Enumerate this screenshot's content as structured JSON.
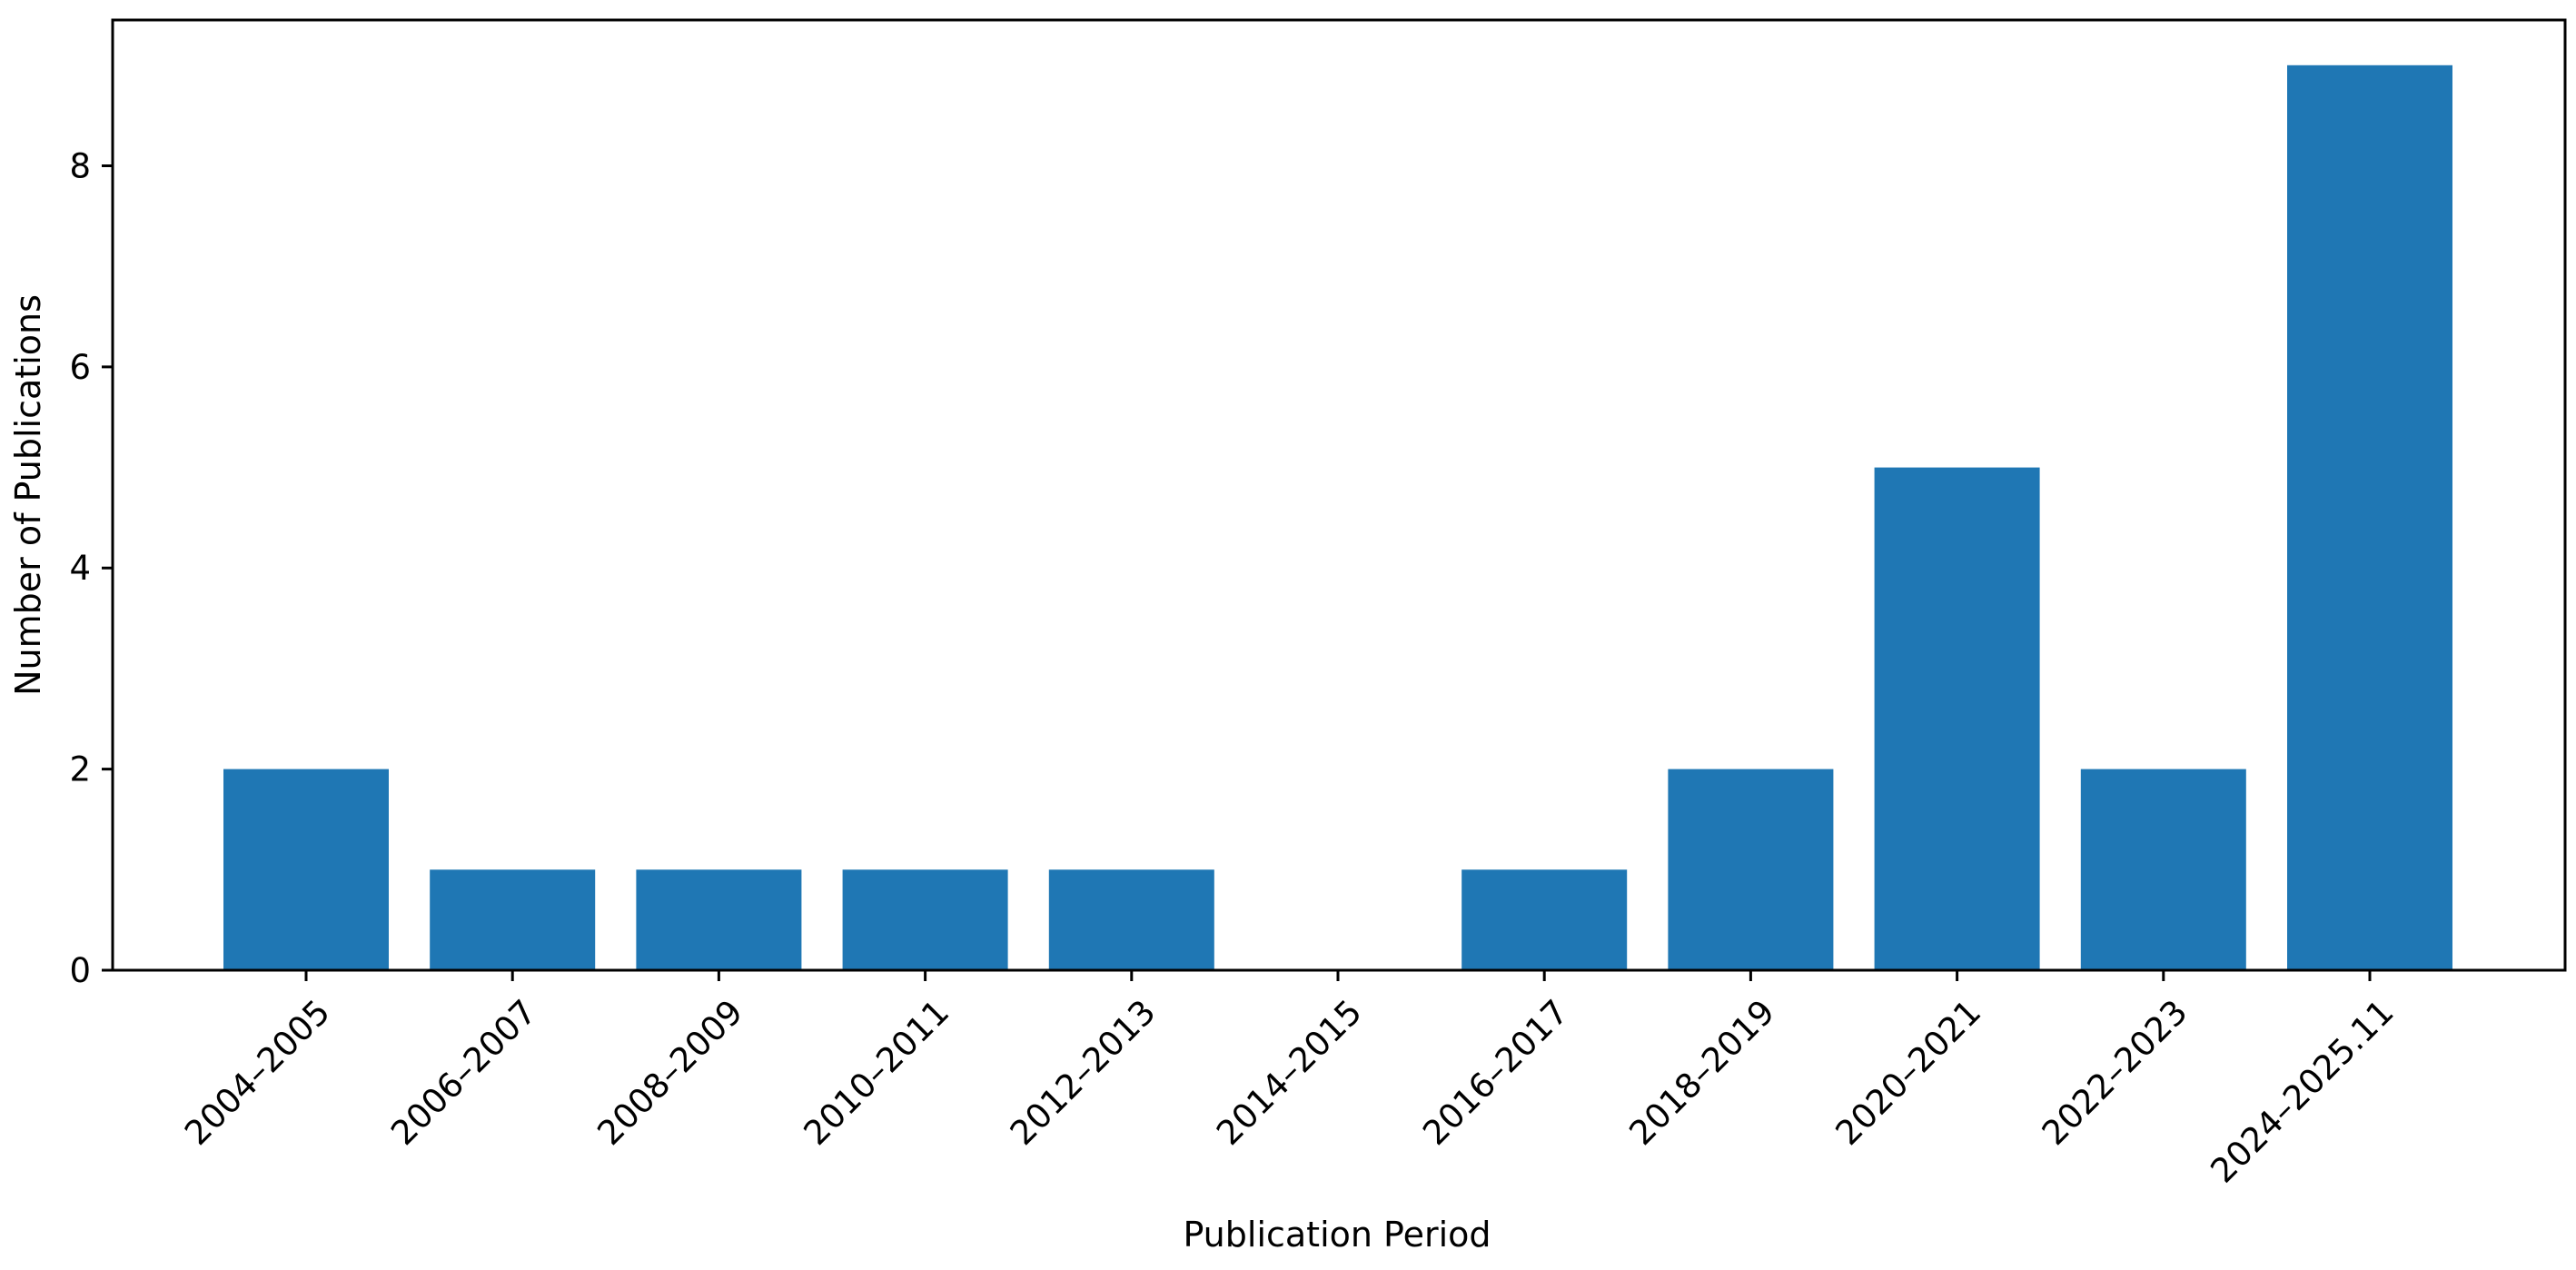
{
  "chart_data": {
    "type": "bar",
    "title": "",
    "xlabel": "Publication Period",
    "ylabel": "Number of Publications",
    "categories": [
      "2004–2005",
      "2006–2007",
      "2008–2009",
      "2010–2011",
      "2012–2013",
      "2014–2015",
      "2016–2017",
      "2018–2019",
      "2020–2021",
      "2022–2023",
      "2024–2025.11"
    ],
    "values": [
      2,
      1,
      1,
      1,
      1,
      0,
      1,
      2,
      5,
      2,
      9
    ],
    "ylim": [
      0,
      9.45
    ],
    "yticks": [
      0,
      2,
      4,
      6,
      8
    ],
    "grid": false,
    "legend": "none",
    "colors": {
      "bar": "#1f77b4",
      "axis": "#000000",
      "background": "#ffffff"
    }
  }
}
